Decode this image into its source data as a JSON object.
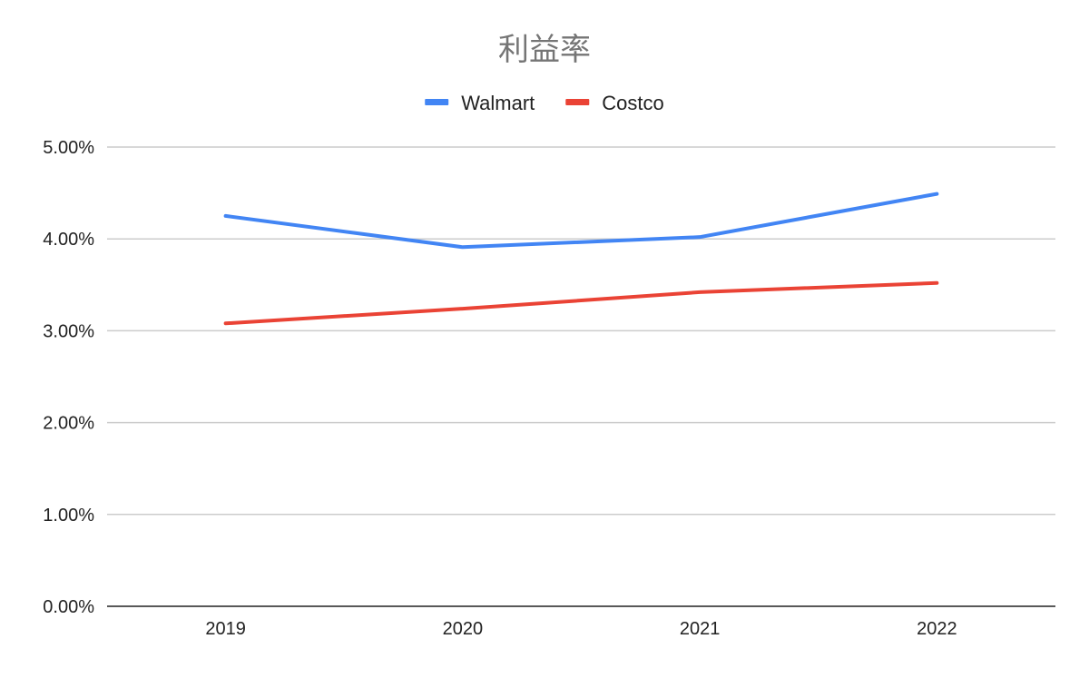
{
  "chart_data": {
    "type": "line",
    "title": "利益率",
    "xlabel": "",
    "ylabel": "",
    "categories": [
      "2019",
      "2020",
      "2021",
      "2022"
    ],
    "series": [
      {
        "name": "Walmart",
        "color": "#4285f4",
        "values": [
          4.25,
          3.91,
          4.02,
          4.49
        ]
      },
      {
        "name": "Costco",
        "color": "#ea4335",
        "values": [
          3.08,
          3.24,
          3.42,
          3.52
        ]
      }
    ],
    "ylim": [
      0,
      5
    ],
    "yticks": [
      "0.00%",
      "1.00%",
      "2.00%",
      "3.00%",
      "4.00%",
      "5.00%"
    ],
    "ytick_values": [
      0,
      1,
      2,
      3,
      4,
      5
    ],
    "grid": true,
    "legend_position": "top"
  }
}
